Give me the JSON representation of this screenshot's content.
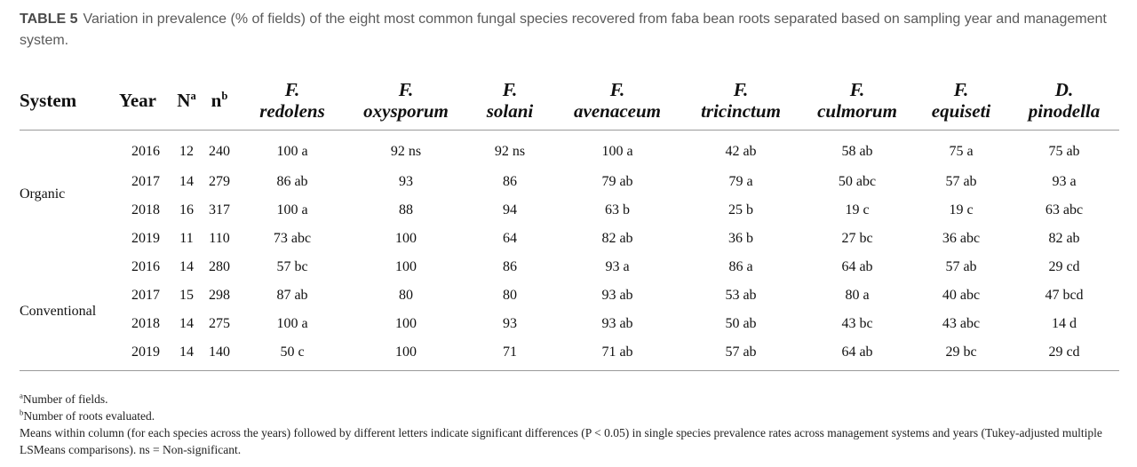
{
  "caption": {
    "label": "TABLE 5",
    "text": "Variation in prevalence (% of fields) of the eight most common fungal species recovered from faba bean roots separated based on sampling year and management system."
  },
  "table": {
    "headers": {
      "system": "System",
      "year": "Year",
      "N": "N",
      "N_sup": "a",
      "n": "n",
      "n_sup": "b",
      "species": [
        {
          "genus": "F.",
          "epithet": "redolens"
        },
        {
          "genus": "F.",
          "epithet": "oxysporum"
        },
        {
          "genus": "F.",
          "epithet": "solani"
        },
        {
          "genus": "F.",
          "epithet": "avenaceum"
        },
        {
          "genus": "F.",
          "epithet": "tricinctum"
        },
        {
          "genus": "F.",
          "epithet": "culmorum"
        },
        {
          "genus": "F.",
          "epithet": "equiseti"
        },
        {
          "genus": "D.",
          "epithet": "pinodella"
        }
      ]
    },
    "groups": [
      {
        "system": "Organic",
        "rows": [
          {
            "year": "2016",
            "N": "12",
            "n": "240",
            "values": [
              "100 a",
              "92 ns",
              "92 ns",
              "100 a",
              "42 ab",
              "58 ab",
              "75 a",
              "75 ab"
            ]
          },
          {
            "year": "2017",
            "N": "14",
            "n": "279",
            "values": [
              "86 ab",
              "93",
              "86",
              "79 ab",
              "79 a",
              "50 abc",
              "57 ab",
              "93 a"
            ]
          },
          {
            "year": "2018",
            "N": "16",
            "n": "317",
            "values": [
              "100 a",
              "88",
              "94",
              "63 b",
              "25 b",
              "19 c",
              "19 c",
              "63 abc"
            ]
          },
          {
            "year": "2019",
            "N": "11",
            "n": "110",
            "values": [
              "73 abc",
              "100",
              "64",
              "82 ab",
              "36 b",
              "27 bc",
              "36 abc",
              "82 ab"
            ]
          }
        ]
      },
      {
        "system": "Conventional",
        "rows": [
          {
            "year": "2016",
            "N": "14",
            "n": "280",
            "values": [
              "57 bc",
              "100",
              "86",
              "93 a",
              "86 a",
              "64 ab",
              "57 ab",
              "29 cd"
            ]
          },
          {
            "year": "2017",
            "N": "15",
            "n": "298",
            "values": [
              "87 ab",
              "80",
              "80",
              "93 ab",
              "53 ab",
              "80 a",
              "40 abc",
              "47 bcd"
            ]
          },
          {
            "year": "2018",
            "N": "14",
            "n": "275",
            "values": [
              "100 a",
              "100",
              "93",
              "93 ab",
              "50 ab",
              "43 bc",
              "43 abc",
              "14 d"
            ]
          },
          {
            "year": "2019",
            "N": "14",
            "n": "140",
            "values": [
              "50 c",
              "100",
              "71",
              "71 ab",
              "57 ab",
              "64 ab",
              "29 bc",
              "29 cd"
            ]
          }
        ]
      }
    ]
  },
  "footnotes": [
    {
      "sup": "a",
      "text": "Number of fields."
    },
    {
      "sup": "b",
      "text": "Number of roots evaluated."
    },
    {
      "sup": "",
      "text": "Means within column (for each species across the years) followed by different letters indicate significant differences (P < 0.05) in single species prevalence rates across management systems and years (Tukey-adjusted multiple LSMeans comparisons). ns = Non-significant."
    }
  ]
}
